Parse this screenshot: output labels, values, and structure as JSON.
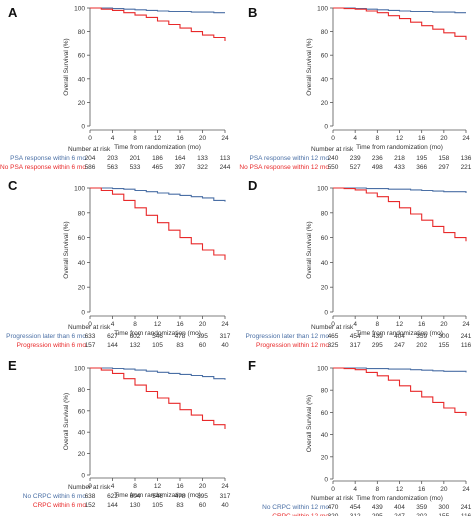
{
  "colors": {
    "blue": "#4a6fa5",
    "red": "#e8292a",
    "axis": "#555555",
    "text": "#333333"
  },
  "common": {
    "ylabel": "Overall Survival (%)",
    "xlabel": "Time from randomization (mo)",
    "yticks": [
      0,
      20,
      40,
      60,
      80,
      100
    ],
    "xticks": [
      0,
      4,
      8,
      12,
      16,
      20,
      24
    ],
    "risk_title": "Number at risk"
  },
  "chart_data": [
    {
      "panel": "A",
      "type": "line",
      "xlim": [
        0,
        24
      ],
      "ylim": [
        0,
        100
      ],
      "x": [
        0,
        2,
        4,
        6,
        8,
        10,
        12,
        14,
        16,
        18,
        20,
        22,
        24
      ],
      "series": [
        {
          "name": "PSA response within 6 mo",
          "color": "blue",
          "values": [
            100,
            100,
            99.5,
            99,
            98.5,
            98,
            97.5,
            97,
            97,
            96.5,
            96.5,
            96,
            96
          ],
          "risk": [
            "204",
            "203",
            "201",
            "186",
            "164",
            "133",
            "113"
          ]
        },
        {
          "name": "No PSA response within 6 mo",
          "color": "red",
          "values": [
            100,
            99,
            98,
            96,
            94,
            92,
            89,
            86,
            83,
            80,
            77,
            75,
            72
          ],
          "risk": [
            "586",
            "563",
            "533",
            "465",
            "397",
            "322",
            "244"
          ]
        }
      ]
    },
    {
      "panel": "B",
      "type": "line",
      "xlim": [
        0,
        24
      ],
      "ylim": [
        0,
        100
      ],
      "x": [
        0,
        2,
        4,
        6,
        8,
        10,
        12,
        14,
        16,
        18,
        20,
        22,
        24
      ],
      "series": [
        {
          "name": "PSA response within 12 mo",
          "color": "blue",
          "values": [
            100,
            100,
            99.5,
            99,
            98.5,
            98,
            97.5,
            97,
            97,
            96.5,
            96.5,
            96,
            96
          ],
          "risk": [
            "240",
            "239",
            "236",
            "218",
            "195",
            "158",
            "136"
          ]
        },
        {
          "name": "No PSA response within 12 mo",
          "color": "red",
          "values": [
            100,
            99.5,
            99,
            97.5,
            96,
            93.5,
            91,
            88,
            85,
            82,
            79,
            76,
            73
          ],
          "risk": [
            "550",
            "527",
            "498",
            "433",
            "366",
            "297",
            "221"
          ]
        }
      ]
    },
    {
      "panel": "C",
      "type": "line",
      "xlim": [
        0,
        24
      ],
      "ylim": [
        0,
        100
      ],
      "x": [
        0,
        2,
        4,
        6,
        8,
        10,
        12,
        14,
        16,
        18,
        20,
        22,
        24
      ],
      "series": [
        {
          "name": "Progression later than 6 mo",
          "color": "blue",
          "values": [
            100,
            100,
            99.5,
            99,
            98,
            97,
            96,
            95,
            94,
            93,
            92,
            90,
            89
          ],
          "risk": [
            "633",
            "627",
            "602",
            "546",
            "478",
            "395",
            "317"
          ]
        },
        {
          "name": "Progression within 6 mo",
          "color": "red",
          "values": [
            100,
            98,
            95,
            90,
            84,
            78,
            72,
            66,
            60,
            55,
            50,
            46,
            42
          ],
          "risk": [
            "157",
            "144",
            "132",
            "105",
            "83",
            "60",
            "40"
          ]
        }
      ]
    },
    {
      "panel": "D",
      "type": "line",
      "xlim": [
        0,
        24
      ],
      "ylim": [
        0,
        100
      ],
      "x": [
        0,
        2,
        4,
        6,
        8,
        10,
        12,
        14,
        16,
        18,
        20,
        22,
        24
      ],
      "series": [
        {
          "name": "Progression later than 12 mo",
          "color": "blue",
          "values": [
            100,
            100,
            100,
            99.5,
            99.5,
            99,
            99,
            98.5,
            98,
            97.5,
            97,
            97,
            96
          ],
          "risk": [
            "465",
            "454",
            "439",
            "404",
            "359",
            "300",
            "241"
          ]
        },
        {
          "name": "Progression within 12 mo",
          "color": "red",
          "values": [
            100,
            99.5,
            98.5,
            96,
            93,
            89,
            84,
            79,
            74,
            69,
            64,
            60,
            57
          ],
          "risk": [
            "325",
            "317",
            "295",
            "247",
            "202",
            "155",
            "116"
          ]
        }
      ]
    },
    {
      "panel": "E",
      "type": "line",
      "xlim": [
        0,
        24
      ],
      "ylim": [
        0,
        100
      ],
      "x": [
        0,
        2,
        4,
        6,
        8,
        10,
        12,
        14,
        16,
        18,
        20,
        22,
        24
      ],
      "series": [
        {
          "name": "No CRPC within 6 mo",
          "color": "blue",
          "values": [
            100,
            100,
            99.5,
            99,
            98,
            97,
            96,
            95,
            94,
            93,
            92,
            90,
            89
          ],
          "risk": [
            "638",
            "622",
            "604",
            "546",
            "478",
            "395",
            "317"
          ]
        },
        {
          "name": "CRPC within 6 mo",
          "color": "red",
          "values": [
            100,
            98,
            95,
            90,
            84,
            78,
            72,
            67,
            61,
            56,
            51,
            47,
            43
          ],
          "risk": [
            "152",
            "144",
            "130",
            "105",
            "83",
            "60",
            "40"
          ]
        }
      ]
    },
    {
      "panel": "F",
      "type": "line",
      "xlim": [
        0,
        24
      ],
      "ylim": [
        0,
        100
      ],
      "x": [
        0,
        2,
        4,
        6,
        8,
        10,
        12,
        14,
        16,
        18,
        20,
        22,
        24
      ],
      "series": [
        {
          "name": "No CRPC within 12 mo",
          "color": "blue",
          "values": [
            100,
            100,
            100,
            99.5,
            99.5,
            99,
            99,
            98.5,
            98,
            97.5,
            97,
            97,
            96
          ],
          "risk": [
            "470",
            "454",
            "439",
            "404",
            "359",
            "300",
            "241"
          ]
        },
        {
          "name": "CRPC within 12 mo",
          "color": "red",
          "values": [
            100,
            99.5,
            98.5,
            96,
            93,
            89,
            84,
            79,
            74,
            69,
            64,
            60,
            57
          ],
          "risk": [
            "320",
            "312",
            "295",
            "247",
            "202",
            "155",
            "116"
          ]
        }
      ]
    }
  ]
}
